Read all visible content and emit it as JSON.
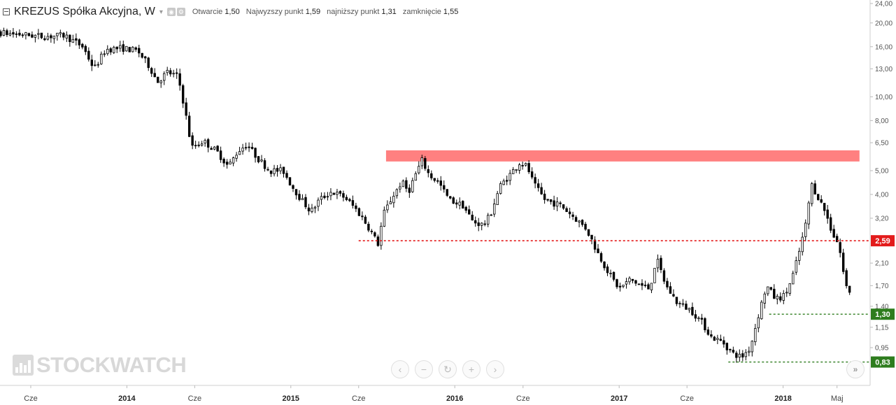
{
  "legend": {
    "symbol": "KREZUS Spółka Akcyjna, W",
    "ohlc": [
      {
        "label": "Otwarcie",
        "value": "1,50"
      },
      {
        "label": "Najwyzszy punkt",
        "value": "1,59"
      },
      {
        "label": "najniższy punkt",
        "value": "1,31"
      },
      {
        "label": "zamknięcie",
        "value": "1,55"
      }
    ]
  },
  "watermark": "STOCKWATCH",
  "nav_icons": [
    "chevron-left-icon",
    "zoom-out-icon",
    "reset-icon",
    "zoom-in-icon",
    "chevron-right-icon"
  ],
  "colors": {
    "candle": "#000000",
    "resistance_zone": "#ff8080",
    "level_red": "#e31b1b",
    "level_green": "#2e7d1e"
  },
  "chart_data": {
    "type": "candlestick",
    "scale": "log",
    "ylim": [
      0.75,
      24.0
    ],
    "xlim": [
      "2013-01-01",
      "2018-06-25"
    ],
    "y_ticks": [
      {
        "v": 24.0,
        "t": "24,00"
      },
      {
        "v": 20.0,
        "t": "20,00"
      },
      {
        "v": 16.0,
        "t": "16,00"
      },
      {
        "v": 13.0,
        "t": "13,00"
      },
      {
        "v": 10.0,
        "t": "10,00"
      },
      {
        "v": 8.0,
        "t": "8,00"
      },
      {
        "v": 6.5,
        "t": "6,50"
      },
      {
        "v": 5.0,
        "t": "5,00"
      },
      {
        "v": 4.0,
        "t": "4,00"
      },
      {
        "v": 3.2,
        "t": "3,20"
      },
      {
        "v": 2.1,
        "t": "2,10"
      },
      {
        "v": 1.7,
        "t": "1,70"
      },
      {
        "v": 1.4,
        "t": "1,40"
      },
      {
        "v": 1.15,
        "t": "1,15"
      },
      {
        "v": 0.95,
        "t": "0,95"
      }
    ],
    "x_ticks": [
      {
        "date": "2013-06-01",
        "t": "Cze",
        "bold": false
      },
      {
        "date": "2014-01-01",
        "t": "2014",
        "bold": true
      },
      {
        "date": "2014-06-01",
        "t": "Cze",
        "bold": false
      },
      {
        "date": "2015-01-01",
        "t": "2015",
        "bold": true
      },
      {
        "date": "2015-06-01",
        "t": "Cze",
        "bold": false
      },
      {
        "date": "2016-01-01",
        "t": "2016",
        "bold": true
      },
      {
        "date": "2016-06-01",
        "t": "Cze",
        "bold": false
      },
      {
        "date": "2017-01-01",
        "t": "2017",
        "bold": true
      },
      {
        "date": "2017-06-01",
        "t": "Cze",
        "bold": false
      },
      {
        "date": "2018-01-01",
        "t": "2018",
        "bold": true
      },
      {
        "date": "2018-05-01",
        "t": "Maj",
        "bold": false
      }
    ],
    "price_points": [
      {
        "d": "2013-01-01",
        "p": 18.5
      },
      {
        "d": "2013-02-05",
        "p": 19.8
      },
      {
        "d": "2013-03-15",
        "p": 18.3
      },
      {
        "d": "2013-05-01",
        "p": 18.0
      },
      {
        "d": "2013-07-01",
        "p": 17.6
      },
      {
        "d": "2013-08-15",
        "p": 17.8
      },
      {
        "d": "2013-09-25",
        "p": 16.0
      },
      {
        "d": "2013-10-20",
        "p": 13.0
      },
      {
        "d": "2013-11-15",
        "p": 15.6
      },
      {
        "d": "2013-12-20",
        "p": 15.8
      },
      {
        "d": "2014-01-25",
        "p": 15.4
      },
      {
        "d": "2014-02-20",
        "p": 13.3
      },
      {
        "d": "2014-03-10",
        "p": 11.5
      },
      {
        "d": "2014-04-01",
        "p": 12.6
      },
      {
        "d": "2014-04-25",
        "p": 12.1
      },
      {
        "d": "2014-05-10",
        "p": 8.9
      },
      {
        "d": "2014-05-25",
        "p": 6.2
      },
      {
        "d": "2014-06-20",
        "p": 6.6
      },
      {
        "d": "2014-07-20",
        "p": 6.0
      },
      {
        "d": "2014-08-15",
        "p": 5.2
      },
      {
        "d": "2014-09-05",
        "p": 6.0
      },
      {
        "d": "2014-09-25",
        "p": 6.4
      },
      {
        "d": "2014-10-20",
        "p": 5.6
      },
      {
        "d": "2014-11-15",
        "p": 5.0
      },
      {
        "d": "2014-12-15",
        "p": 5.0
      },
      {
        "d": "2015-01-01",
        "p": 4.4
      },
      {
        "d": "2015-01-25",
        "p": 3.8
      },
      {
        "d": "2015-02-15",
        "p": 3.4
      },
      {
        "d": "2015-03-05",
        "p": 3.8
      },
      {
        "d": "2015-04-01",
        "p": 4.1
      },
      {
        "d": "2015-05-01",
        "p": 3.9
      },
      {
        "d": "2015-05-25",
        "p": 3.5
      },
      {
        "d": "2015-06-10",
        "p": 3.2
      },
      {
        "d": "2015-06-25",
        "p": 2.9
      },
      {
        "d": "2015-07-15",
        "p": 2.5
      },
      {
        "d": "2015-07-25",
        "p": 3.3
      },
      {
        "d": "2015-08-15",
        "p": 3.9
      },
      {
        "d": "2015-09-05",
        "p": 4.5
      },
      {
        "d": "2015-09-20",
        "p": 4.1
      },
      {
        "d": "2015-10-05",
        "p": 4.8
      },
      {
        "d": "2015-10-20",
        "p": 5.5
      },
      {
        "d": "2015-11-05",
        "p": 4.8
      },
      {
        "d": "2015-11-25",
        "p": 4.5
      },
      {
        "d": "2015-12-20",
        "p": 3.8
      },
      {
        "d": "2016-01-20",
        "p": 3.6
      },
      {
        "d": "2016-02-10",
        "p": 3.1
      },
      {
        "d": "2016-03-05",
        "p": 3.0
      },
      {
        "d": "2016-03-20",
        "p": 3.3
      },
      {
        "d": "2016-04-10",
        "p": 4.3
      },
      {
        "d": "2016-05-10",
        "p": 5.0
      },
      {
        "d": "2016-05-25",
        "p": 5.4
      },
      {
        "d": "2016-06-10",
        "p": 5.2
      },
      {
        "d": "2016-06-25",
        "p": 4.4
      },
      {
        "d": "2016-07-20",
        "p": 3.8
      },
      {
        "d": "2016-08-25",
        "p": 3.6
      },
      {
        "d": "2016-09-25",
        "p": 3.2
      },
      {
        "d": "2016-10-20",
        "p": 2.9
      },
      {
        "d": "2016-11-15",
        "p": 2.3
      },
      {
        "d": "2016-12-10",
        "p": 1.9
      },
      {
        "d": "2017-01-01",
        "p": 1.65
      },
      {
        "d": "2017-01-25",
        "p": 1.8
      },
      {
        "d": "2017-02-20",
        "p": 1.7
      },
      {
        "d": "2017-03-10",
        "p": 1.65
      },
      {
        "d": "2017-03-25",
        "p": 2.2
      },
      {
        "d": "2017-04-15",
        "p": 1.7
      },
      {
        "d": "2017-05-10",
        "p": 1.45
      },
      {
        "d": "2017-06-10",
        "p": 1.35
      },
      {
        "d": "2017-07-05",
        "p": 1.2
      },
      {
        "d": "2017-07-25",
        "p": 1.05
      },
      {
        "d": "2017-08-20",
        "p": 1.0
      },
      {
        "d": "2017-09-10",
        "p": 0.9
      },
      {
        "d": "2017-10-01",
        "p": 0.87
      },
      {
        "d": "2017-10-20",
        "p": 0.95
      },
      {
        "d": "2017-11-05",
        "p": 1.25
      },
      {
        "d": "2017-11-25",
        "p": 1.7
      },
      {
        "d": "2017-12-15",
        "p": 1.5
      },
      {
        "d": "2018-01-05",
        "p": 1.55
      },
      {
        "d": "2018-01-20",
        "p": 1.8
      },
      {
        "d": "2018-02-05",
        "p": 2.3
      },
      {
        "d": "2018-02-20",
        "p": 3.0
      },
      {
        "d": "2018-03-05",
        "p": 4.4
      },
      {
        "d": "2018-03-20",
        "p": 3.9
      },
      {
        "d": "2018-04-05",
        "p": 3.4
      },
      {
        "d": "2018-04-20",
        "p": 2.8
      },
      {
        "d": "2018-05-05",
        "p": 2.5
      },
      {
        "d": "2018-05-20",
        "p": 1.7
      },
      {
        "d": "2018-06-05",
        "p": 1.55
      }
    ],
    "annotations": {
      "resistance_zone": {
        "from": "2015-08-01",
        "to": "2018-06-20",
        "low": 5.45,
        "high": 6.05
      },
      "lines": [
        {
          "value": 2.59,
          "label": "2,59",
          "from": "2015-06-01",
          "style": "dotted-red"
        },
        {
          "value": 1.3,
          "label": "1,30",
          "from": "2017-12-01",
          "style": "dotted-green"
        },
        {
          "value": 0.83,
          "label": "0,83",
          "from": "2017-09-01",
          "style": "dotted-green"
        }
      ]
    }
  }
}
